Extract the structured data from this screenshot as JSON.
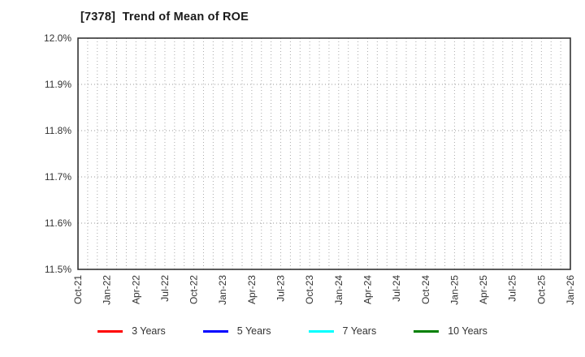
{
  "title": "[7378]  Trend of Mean of ROE",
  "chart_data": {
    "type": "line",
    "title": "[7378]  Trend of Mean of ROE",
    "xlabel": "",
    "ylabel": "",
    "x_tick_labels": [
      "Oct-21",
      "Jan-22",
      "Apr-22",
      "Jul-22",
      "Oct-22",
      "Jan-23",
      "Apr-23",
      "Jul-23",
      "Oct-23",
      "Jan-24",
      "Apr-24",
      "Jul-24",
      "Oct-24",
      "Jan-25",
      "Apr-25",
      "Jul-25",
      "Oct-25",
      "Jan-26"
    ],
    "x_total_months": 51,
    "x_ticks_every_months": 3,
    "ylim": [
      11.5,
      12.0
    ],
    "y_ticks": [
      11.5,
      11.6,
      11.7,
      11.8,
      11.9,
      12.0
    ],
    "y_tick_labels": [
      "11.5%",
      "11.6%",
      "11.7%",
      "11.8%",
      "11.9%",
      "12.0%"
    ],
    "grid": {
      "visible": true,
      "style": "dotted",
      "color": "#aaaaaa",
      "vertical": "every month",
      "horizontal": "every 0.1%"
    },
    "frame_color": "#333333",
    "tick_label_color": "#333333",
    "legend_position": "bottom",
    "series": [
      {
        "name": "3 Years",
        "color": "#ff0000",
        "values": []
      },
      {
        "name": "5 Years",
        "color": "#0000ff",
        "values": []
      },
      {
        "name": "7 Years",
        "color": "#00ffff",
        "values": []
      },
      {
        "name": "10 Years",
        "color": "#008000",
        "values": []
      }
    ]
  }
}
